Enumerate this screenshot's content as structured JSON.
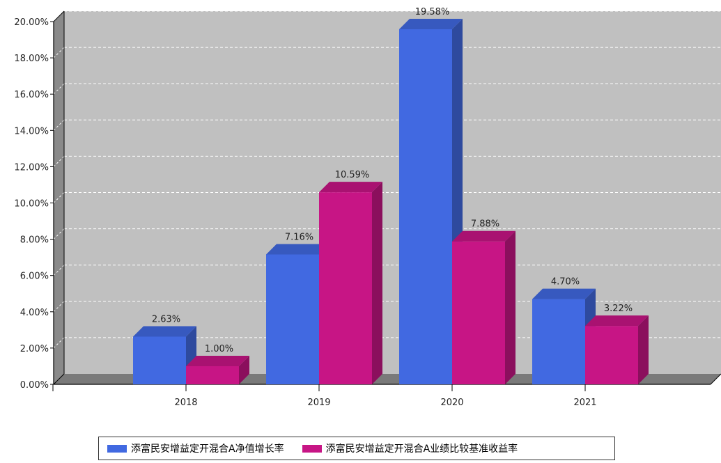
{
  "chart_data": {
    "type": "bar",
    "categories": [
      "2018",
      "2019",
      "2020",
      "2021"
    ],
    "series": [
      {
        "name": "添富民安增益定开混合A净值增长率",
        "values": [
          2.63,
          7.16,
          19.58,
          4.7
        ],
        "labels": [
          "2.63%",
          "7.16%",
          "19.58%",
          "4.70%"
        ],
        "color": "#4169E1"
      },
      {
        "name": "添富民安增益定开混合A业绩比较基准收益率",
        "values": [
          1.0,
          10.59,
          7.88,
          3.22
        ],
        "labels": [
          "1.00%",
          "10.59%",
          "7.88%",
          "3.22%"
        ],
        "color": "#C71585"
      }
    ],
    "yticks": [
      "0.00%",
      "2.00%",
      "4.00%",
      "6.00%",
      "8.00%",
      "10.00%",
      "12.00%",
      "14.00%",
      "16.00%",
      "18.00%",
      "20.00%"
    ],
    "ylim": [
      0,
      20
    ],
    "grid": true,
    "legend_position": "bottom",
    "plot_background": "#C0C0C0"
  }
}
